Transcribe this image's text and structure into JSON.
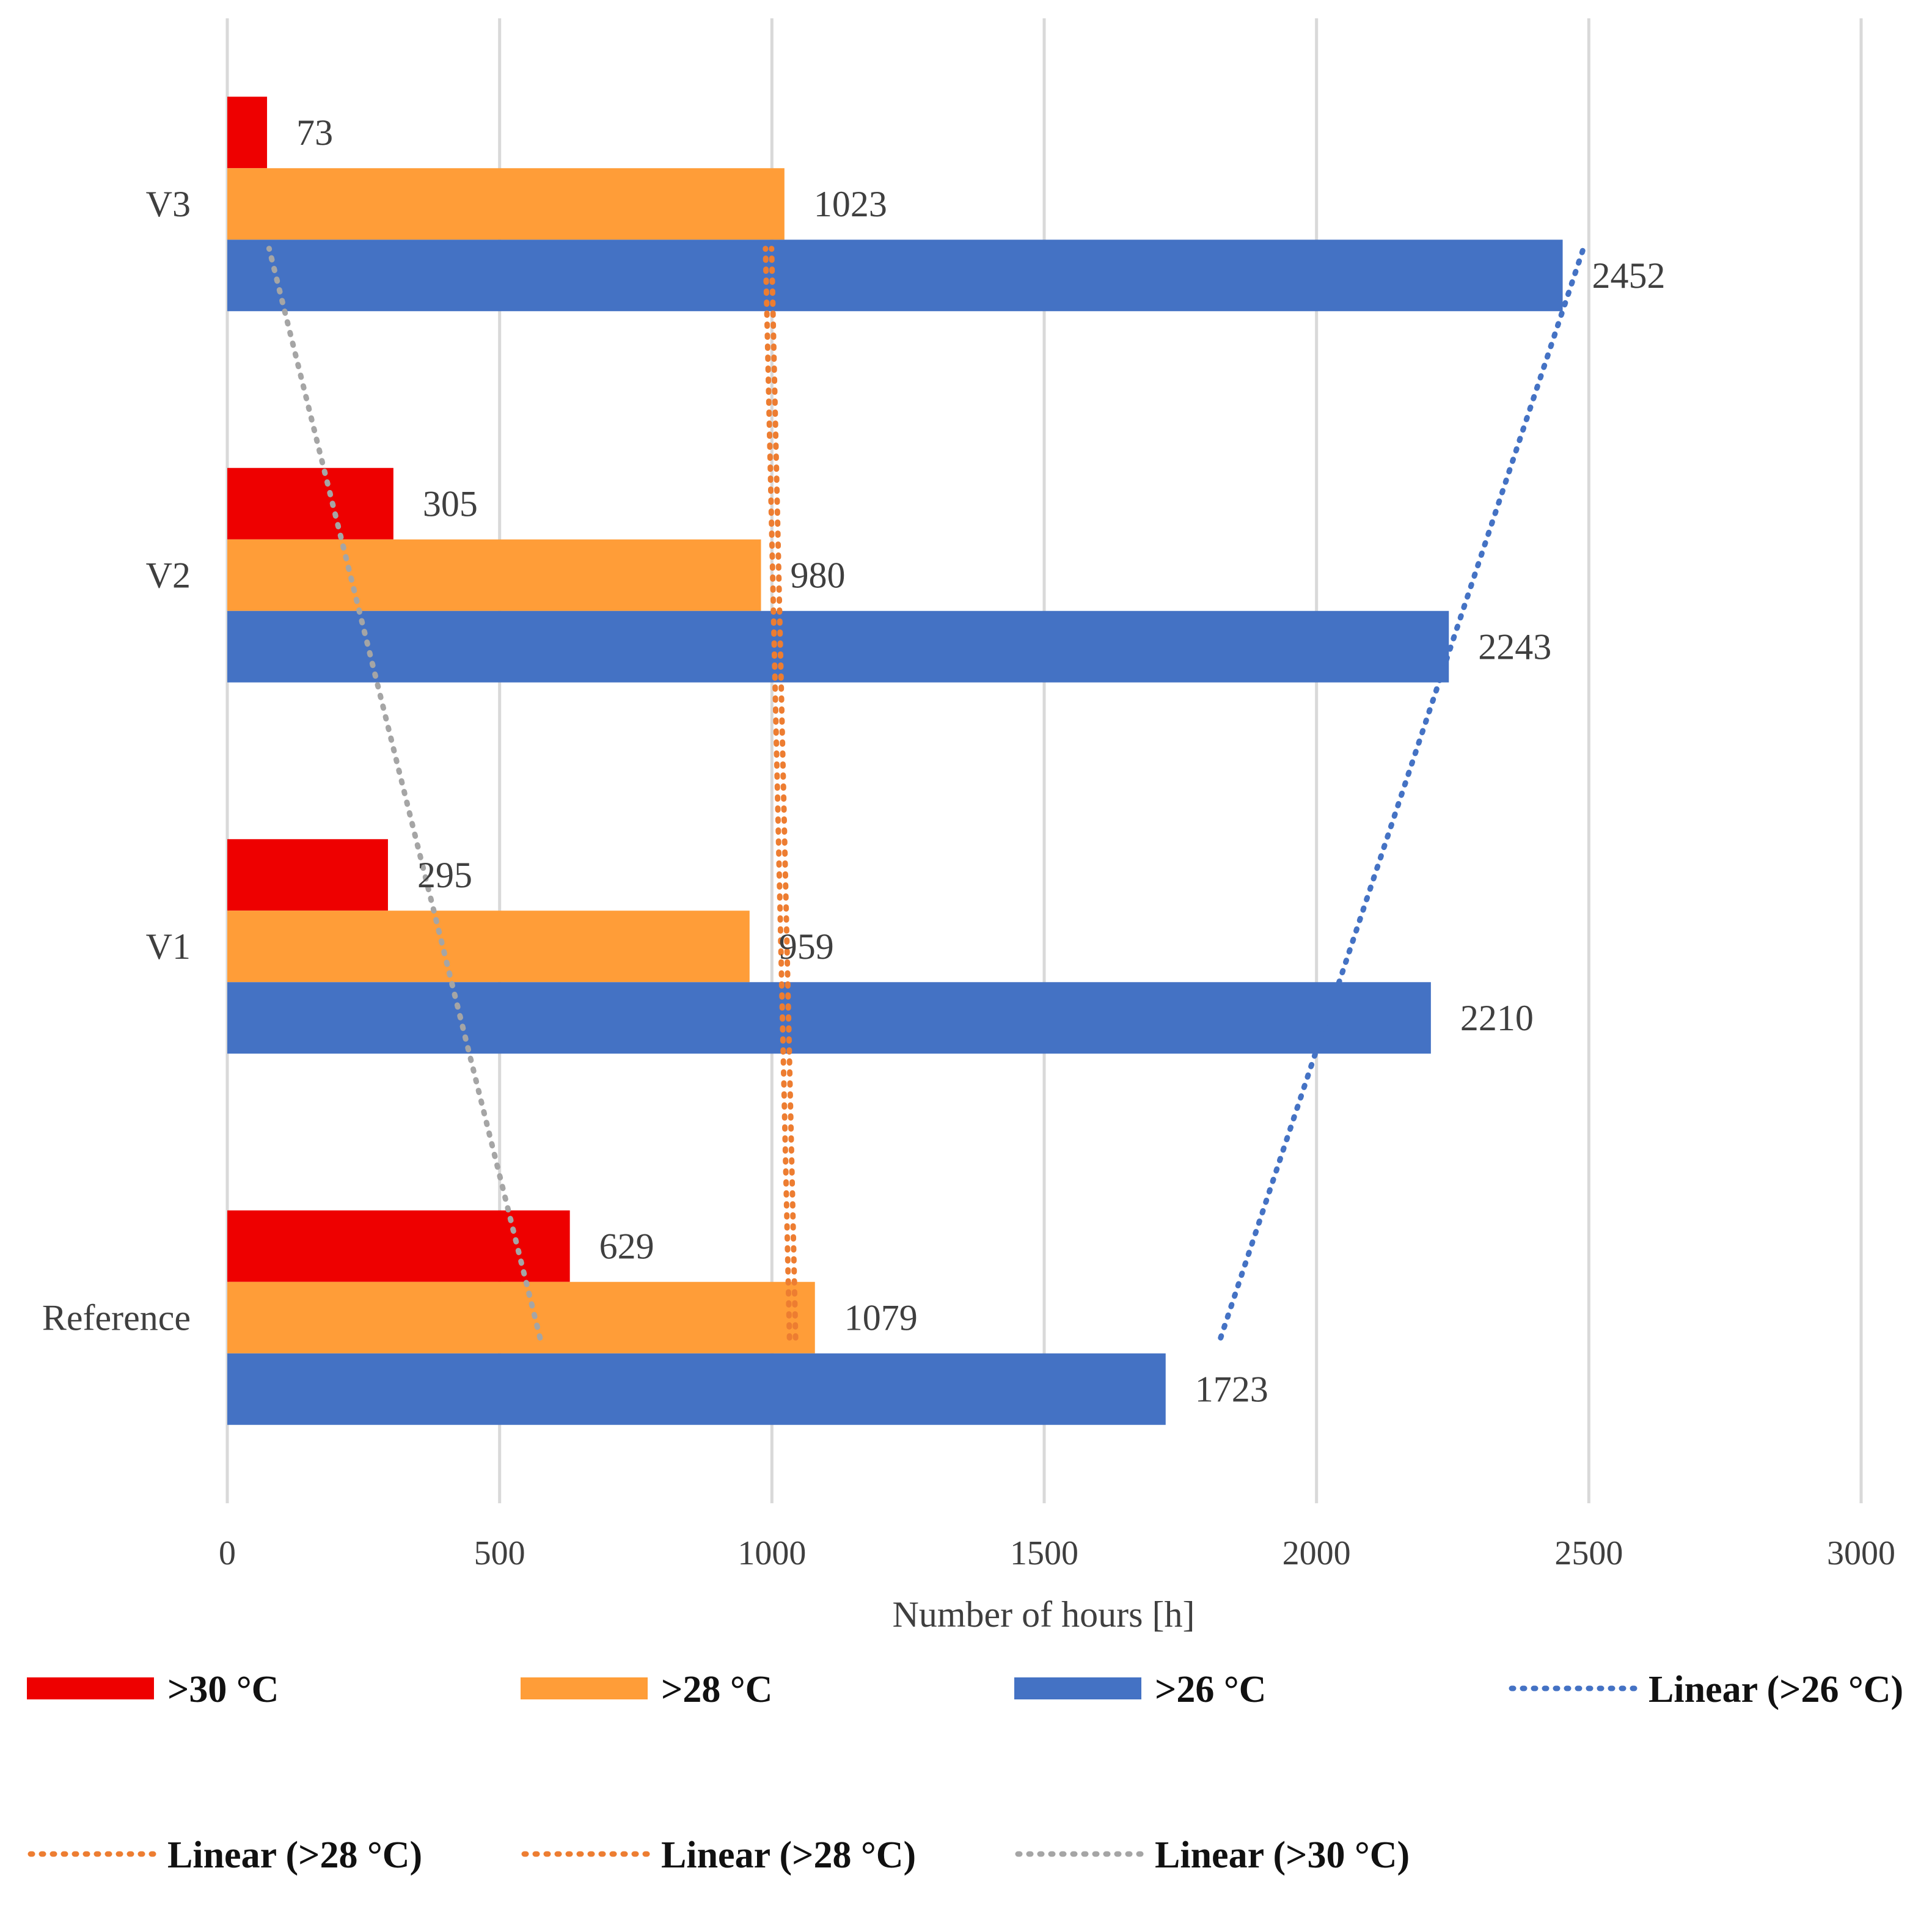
{
  "chart_data": {
    "type": "bar",
    "orientation": "horizontal",
    "categories": [
      "Reference",
      "V1",
      "V2",
      "V3"
    ],
    "series": [
      {
        "name": ">30 °C",
        "color": "#ee0000",
        "values": [
          629,
          295,
          305,
          73
        ]
      },
      {
        "name": ">28 °C",
        "color": "#ff9d38",
        "values": [
          1079,
          959,
          980,
          1023
        ]
      },
      {
        "name": ">26 °C",
        "color": "#4472c4",
        "values": [
          1723,
          2210,
          2243,
          2452
        ]
      }
    ],
    "trendlines": [
      {
        "name": "Linear (>26 °C)",
        "color": "#4472c4",
        "style": "dotted",
        "fit": "linear",
        "of_series": ">26 °C"
      },
      {
        "name": "Linear (>28 °C)",
        "color": "#ed7d31",
        "style": "dotted",
        "fit": "linear",
        "of_series": ">28 °C"
      },
      {
        "name": "Linear (>28 °C)",
        "color": "#ed7d31",
        "style": "dotted",
        "fit": "linear",
        "of_series": ">28 °C"
      },
      {
        "name": "Linear (>30 °C)",
        "color": "#a5a5a5",
        "style": "dotted",
        "fit": "linear",
        "of_series": ">30 °C"
      }
    ],
    "title": "",
    "xlabel": "Number of hours [h]",
    "ylabel": "",
    "xlim": [
      0,
      3000
    ],
    "xticks": [
      "0",
      "500",
      "1000",
      "1500",
      "2000",
      "2500",
      "3000"
    ],
    "grid": "vertical",
    "legend_position": "bottom"
  }
}
